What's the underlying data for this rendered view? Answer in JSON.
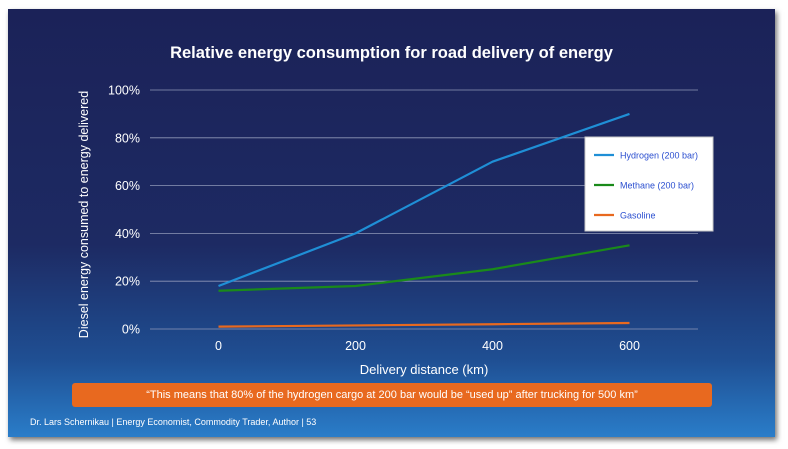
{
  "chart_data": {
    "type": "line",
    "title": "Relative energy consumption for road delivery of energy",
    "xlabel": "Delivery distance (km)",
    "ylabel": "Diesel energy consumed to energy delivered",
    "x": [
      0,
      200,
      400,
      600
    ],
    "x_tick_labels": [
      "0",
      "200",
      "400",
      "600"
    ],
    "xlim": [
      -100,
      700
    ],
    "ylim": [
      0,
      100
    ],
    "y_tick_labels": [
      "0%",
      "20%",
      "40%",
      "60%",
      "80%",
      "100%"
    ],
    "y_ticks": [
      0,
      20,
      40,
      60,
      80,
      100
    ],
    "grid": true,
    "legend_position": "right",
    "series": [
      {
        "name": "Hydrogen (200 bar)",
        "values": [
          18,
          40,
          70,
          90
        ],
        "color": "#1f8fd6"
      },
      {
        "name": "Methane (200 bar)",
        "values": [
          16,
          18,
          25,
          35
        ],
        "color": "#1a8a1a"
      },
      {
        "name": "Gasoline",
        "values": [
          1,
          1.5,
          2,
          2.5
        ],
        "color": "#e8691f"
      }
    ]
  },
  "banner": {
    "text": "“This means that 80% of the hydrogen cargo at 200 bar would be “used up” after trucking for 500 km”"
  },
  "footer": {
    "text": "Dr. Lars Schernikau | Energy Economist, Commodity Trader, Author | 53"
  }
}
